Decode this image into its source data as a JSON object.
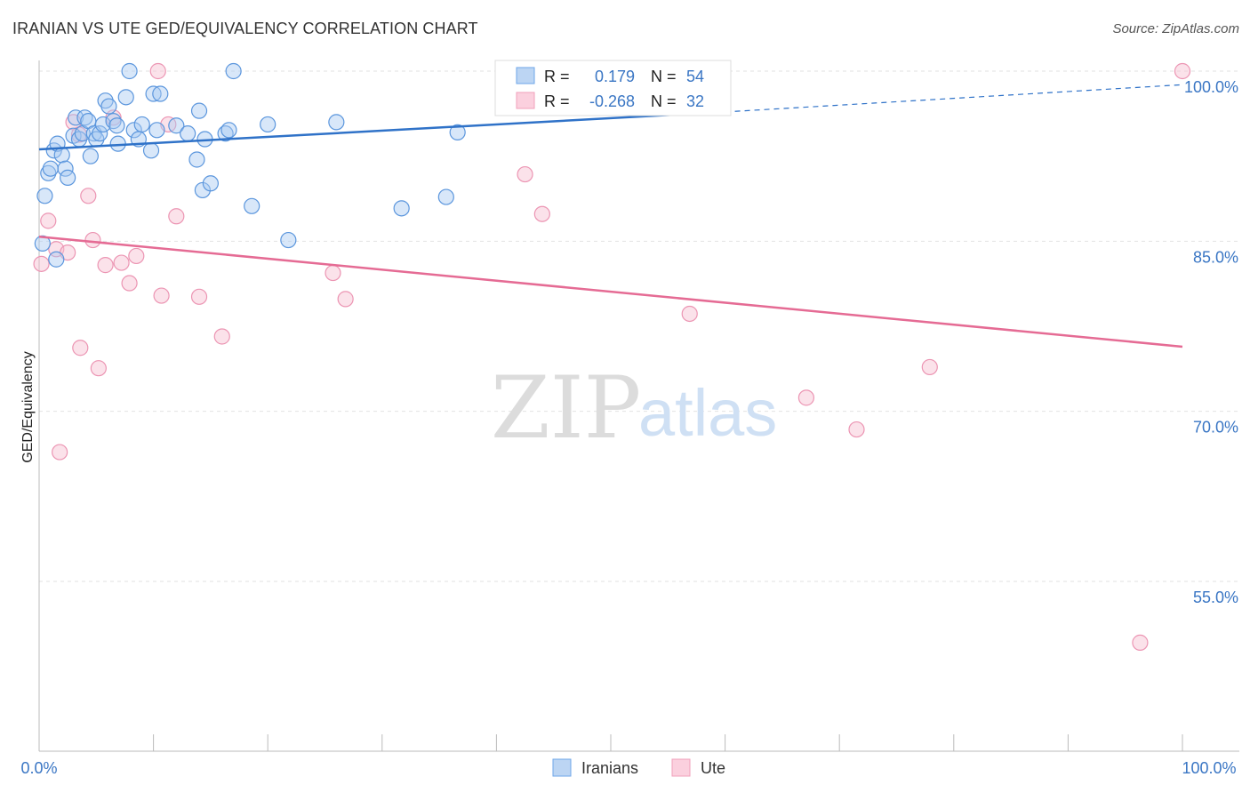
{
  "title": "IRANIAN VS UTE GED/EQUIVALENCY CORRELATION CHART",
  "source": "Source: ZipAtlas.com",
  "watermark": {
    "zip": "ZIP",
    "atlas": "atlas"
  },
  "chart_data": {
    "type": "scatter",
    "title": "IRANIAN VS UTE GED/EQUIVALENCY CORRELATION CHART",
    "ylabel": "GED/Equivalency",
    "xlabel": "",
    "xlim": [
      0,
      100
    ],
    "ylim": [
      40,
      102
    ],
    "x_tick_labels": [
      "0.0%",
      "100.0%"
    ],
    "y_ticks": [
      55,
      70,
      85,
      100
    ],
    "y_tick_labels": [
      "55.0%",
      "70.0%",
      "85.0%",
      "100.0%"
    ],
    "grid": true,
    "legend_position": "top-center",
    "series": [
      {
        "name": "Iranians",
        "color": "#6ea6e8",
        "line_color": "#2f72c8",
        "R": "0.179",
        "N": "54",
        "trend": {
          "x": [
            0,
            60
          ],
          "y": [
            93.1,
            96.4
          ]
        },
        "trend_dashed": {
          "x": [
            60,
            100
          ],
          "y": [
            96.4,
            98.8
          ]
        },
        "points": [
          [
            0.5,
            89.0
          ],
          [
            0.8,
            91.0
          ],
          [
            1.0,
            91.4
          ],
          [
            1.3,
            93.0
          ],
          [
            1.6,
            93.6
          ],
          [
            1.5,
            83.4
          ],
          [
            2.0,
            92.6
          ],
          [
            2.3,
            91.4
          ],
          [
            2.5,
            90.6
          ],
          [
            3.0,
            94.3
          ],
          [
            3.2,
            95.9
          ],
          [
            3.5,
            94.0
          ],
          [
            3.8,
            94.5
          ],
          [
            4.0,
            95.9
          ],
          [
            4.3,
            95.6
          ],
          [
            4.5,
            92.5
          ],
          [
            4.8,
            94.5
          ],
          [
            5.0,
            94.0
          ],
          [
            5.3,
            94.5
          ],
          [
            5.6,
            95.3
          ],
          [
            5.8,
            97.4
          ],
          [
            6.1,
            96.9
          ],
          [
            6.5,
            95.6
          ],
          [
            6.8,
            95.2
          ],
          [
            6.9,
            93.6
          ],
          [
            7.6,
            97.7
          ],
          [
            7.9,
            100.0
          ],
          [
            8.3,
            94.8
          ],
          [
            8.7,
            94.0
          ],
          [
            9.0,
            95.3
          ],
          [
            9.8,
            93.0
          ],
          [
            10.0,
            98.0
          ],
          [
            10.3,
            94.8
          ],
          [
            10.6,
            98.0
          ],
          [
            12.0,
            95.2
          ],
          [
            13.0,
            94.5
          ],
          [
            13.8,
            92.2
          ],
          [
            14.0,
            96.5
          ],
          [
            14.3,
            89.5
          ],
          [
            14.5,
            94.0
          ],
          [
            15.0,
            90.1
          ],
          [
            16.3,
            94.5
          ],
          [
            16.6,
            94.8
          ],
          [
            17.0,
            100.0
          ],
          [
            18.6,
            88.1
          ],
          [
            20.0,
            95.3
          ],
          [
            21.8,
            85.1
          ],
          [
            26.0,
            95.5
          ],
          [
            31.7,
            87.9
          ],
          [
            35.6,
            88.9
          ],
          [
            36.6,
            94.6
          ],
          [
            50.0,
            100.0
          ],
          [
            52.0,
            100.0
          ],
          [
            0.3,
            84.8
          ]
        ]
      },
      {
        "name": "Ute",
        "color": "#f0a0bb",
        "line_color": "#e56b94",
        "R": "-0.268",
        "N": "32",
        "trend": {
          "x": [
            0,
            100
          ],
          "y": [
            85.4,
            75.7
          ]
        },
        "points": [
          [
            0.2,
            83.0
          ],
          [
            0.8,
            86.8
          ],
          [
            1.5,
            84.3
          ],
          [
            1.8,
            66.4
          ],
          [
            2.5,
            84.0
          ],
          [
            3.0,
            95.5
          ],
          [
            3.5,
            94.4
          ],
          [
            3.6,
            75.6
          ],
          [
            4.3,
            89.0
          ],
          [
            4.7,
            85.1
          ],
          [
            5.2,
            73.8
          ],
          [
            5.8,
            82.9
          ],
          [
            6.5,
            95.9
          ],
          [
            7.2,
            83.1
          ],
          [
            7.9,
            81.3
          ],
          [
            8.5,
            83.7
          ],
          [
            10.4,
            100.0
          ],
          [
            10.7,
            80.2
          ],
          [
            11.3,
            95.3
          ],
          [
            12.0,
            87.2
          ],
          [
            14.0,
            80.1
          ],
          [
            16.0,
            76.6
          ],
          [
            25.7,
            82.2
          ],
          [
            26.8,
            79.9
          ],
          [
            42.5,
            90.9
          ],
          [
            44.0,
            87.4
          ],
          [
            56.9,
            78.6
          ],
          [
            67.1,
            71.2
          ],
          [
            71.5,
            68.4
          ],
          [
            77.9,
            73.9
          ],
          [
            96.3,
            49.6
          ],
          [
            100.0,
            100.0
          ]
        ]
      }
    ]
  },
  "legend": {
    "r_label": "R =",
    "n_label": "N =",
    "iranians_r": "0.179",
    "iranians_n": "54",
    "ute_r": "-0.268",
    "ute_n": "32"
  },
  "bottom_legend": {
    "iranians": "Iranians",
    "ute": "Ute"
  }
}
